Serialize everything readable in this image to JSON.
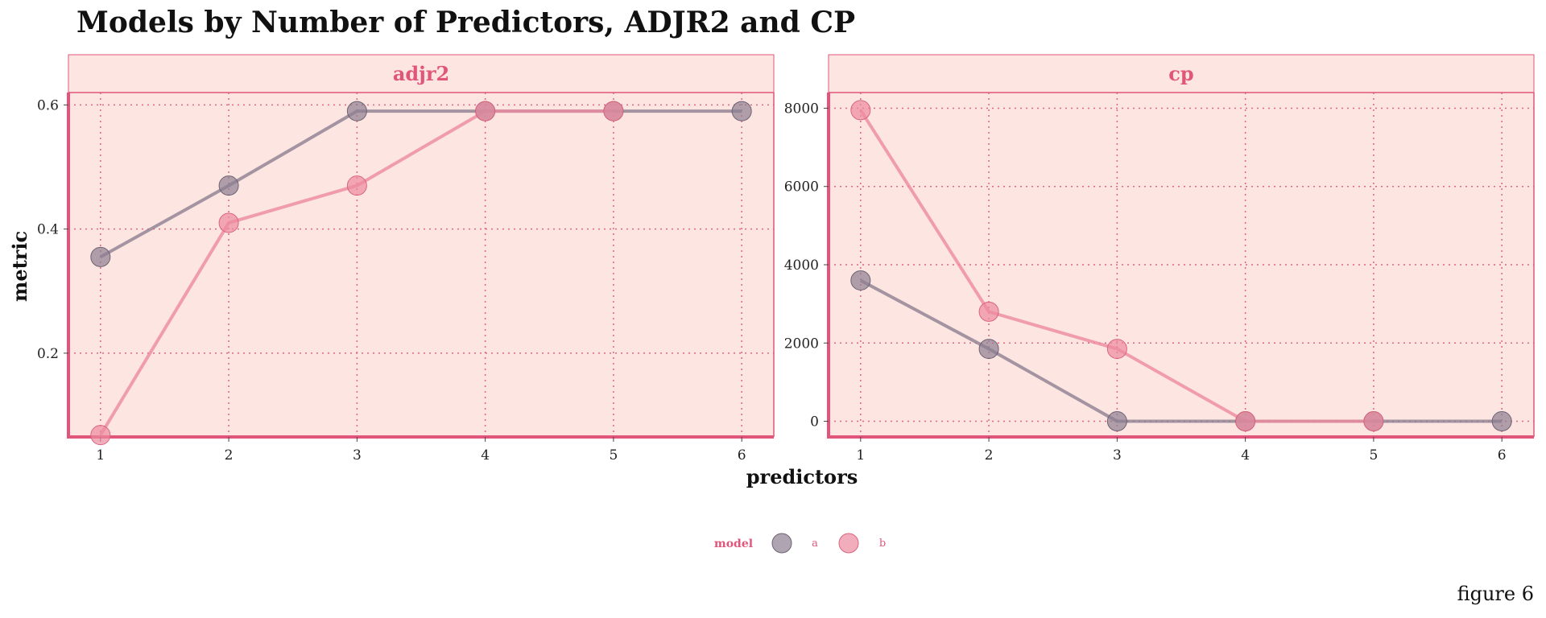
{
  "title": "Models by Number of Predictors, ADJR2 and CP",
  "caption": "figure 6",
  "colors": {
    "panel_bg": "#fde6e1",
    "strip_bg": "#fde6e1",
    "accent": "#e2557a",
    "grid": "#e0657f",
    "series_a": "#8d7f92",
    "series_b": "#ec8aa0"
  },
  "chart_data": {
    "type": "line",
    "xlabel": "predictors",
    "ylabel": "metric",
    "legend": {
      "title": "model",
      "position": "bottom",
      "entries": [
        "a",
        "b"
      ]
    },
    "grid": true,
    "panels": [
      {
        "name": "adjr2",
        "x": [
          1,
          2,
          3,
          4,
          5,
          6
        ],
        "xlim": [
          0.75,
          6.25
        ],
        "ylim": [
          0.065,
          0.62
        ],
        "yticks": [
          0.2,
          0.4,
          0.6
        ],
        "ytick_labels": [
          "0.2",
          "0.4",
          "0.6"
        ],
        "series": [
          {
            "name": "a",
            "values": [
              0.355,
              0.47,
              0.59,
              0.59,
              0.59,
              0.59
            ]
          },
          {
            "name": "b",
            "values": [
              0.068,
              0.41,
              0.47,
              0.59,
              0.59,
              null
            ]
          }
        ]
      },
      {
        "name": "cp",
        "x": [
          1,
          2,
          3,
          4,
          5,
          6
        ],
        "xlim": [
          0.75,
          6.25
        ],
        "ylim": [
          -400,
          8400
        ],
        "yticks": [
          0,
          2000,
          4000,
          6000,
          8000
        ],
        "ytick_labels": [
          "0",
          "2000",
          "4000",
          "6000",
          "8000"
        ],
        "series": [
          {
            "name": "a",
            "values": [
              3600,
              1850,
              0,
              0,
              0,
              0
            ]
          },
          {
            "name": "b",
            "values": [
              7950,
              2800,
              1850,
              0,
              0,
              null
            ]
          }
        ]
      }
    ]
  }
}
